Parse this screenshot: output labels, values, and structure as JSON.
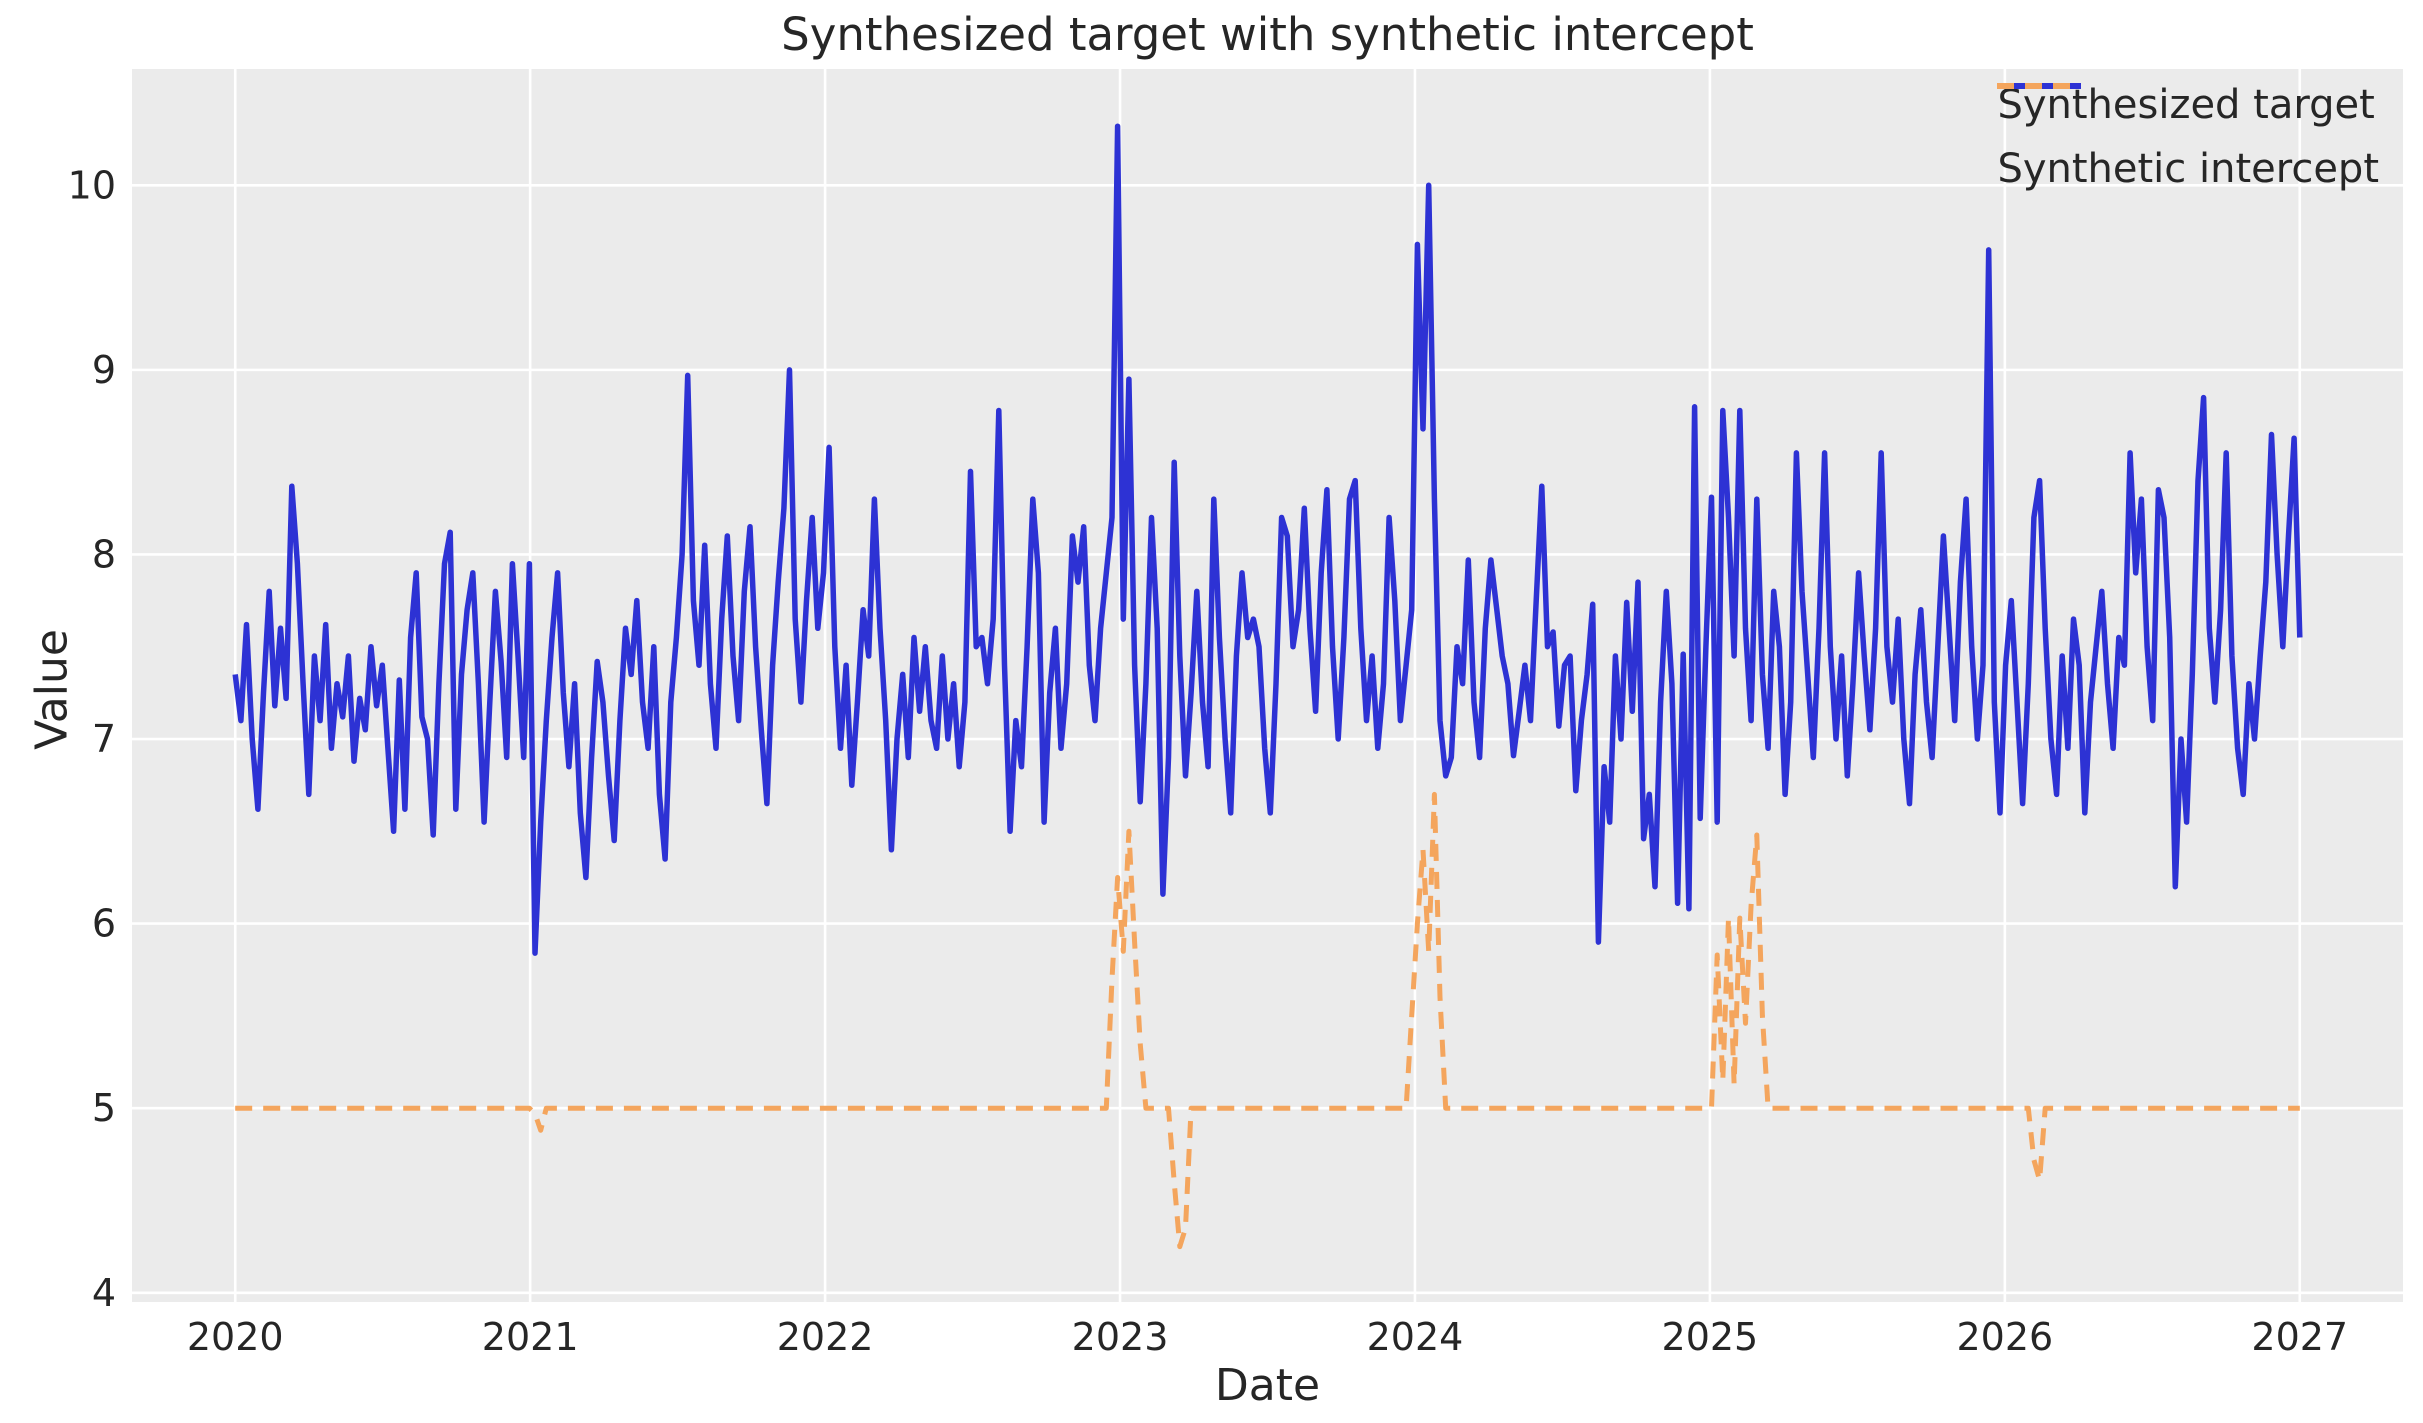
{
  "chart_data": {
    "type": "line",
    "title": "Synthesized target with synthetic intercept",
    "xlabel": "Date",
    "ylabel": "Value",
    "xlim": [
      2019.65,
      2027.35
    ],
    "ylim": [
      3.95,
      10.63
    ],
    "xticks": [
      2020,
      2021,
      2022,
      2023,
      2024,
      2025,
      2026,
      2027
    ],
    "yticks": [
      4,
      5,
      6,
      7,
      8,
      9,
      10
    ],
    "grid": true,
    "legend_position": "upper right",
    "x_start": 2020,
    "x_step_years": 0.0191781,
    "n_points": 366,
    "colors": {
      "figure_background": "#ffffff",
      "axes_background": "#ebebeb",
      "grid": "#ffffff",
      "text": "#262626"
    },
    "series": [
      {
        "name": "Synthesized target",
        "color": "#2d32d4",
        "style": "solid",
        "line_width": 5.5,
        "values": [
          7.35,
          7.1,
          7.62,
          7.0,
          6.62,
          7.25,
          7.8,
          7.18,
          7.6,
          7.22,
          8.37,
          7.95,
          7.3,
          6.7,
          7.45,
          7.1,
          7.62,
          6.95,
          7.3,
          7.12,
          7.45,
          6.88,
          7.22,
          7.05,
          7.5,
          7.18,
          7.4,
          6.95,
          6.5,
          7.32,
          6.62,
          7.55,
          7.9,
          7.12,
          7.0,
          6.48,
          7.3,
          7.95,
          8.12,
          6.62,
          7.35,
          7.7,
          7.9,
          7.3,
          6.55,
          7.2,
          7.8,
          7.42,
          6.9,
          7.95,
          7.45,
          6.9,
          7.95,
          5.84,
          6.55,
          7.1,
          7.55,
          7.9,
          7.25,
          6.85,
          7.3,
          6.6,
          6.25,
          6.9,
          7.42,
          7.2,
          6.8,
          6.45,
          7.1,
          7.6,
          7.35,
          7.75,
          7.2,
          6.95,
          7.5,
          6.7,
          6.35,
          7.2,
          7.55,
          8.0,
          8.97,
          7.75,
          7.4,
          8.05,
          7.3,
          6.95,
          7.65,
          8.1,
          7.45,
          7.1,
          7.8,
          8.15,
          7.5,
          7.05,
          6.65,
          7.4,
          7.85,
          8.25,
          9.0,
          7.65,
          7.2,
          7.75,
          8.2,
          7.6,
          7.9,
          8.58,
          7.5,
          6.95,
          7.4,
          6.75,
          7.2,
          7.7,
          7.45,
          8.3,
          7.6,
          7.1,
          6.4,
          7.0,
          7.35,
          6.9,
          7.55,
          7.15,
          7.5,
          7.1,
          6.95,
          7.45,
          7.0,
          7.3,
          6.85,
          7.2,
          8.45,
          7.5,
          7.55,
          7.3,
          7.65,
          8.78,
          7.4,
          6.5,
          7.1,
          6.85,
          7.5,
          8.3,
          7.9,
          6.55,
          7.25,
          7.6,
          6.95,
          7.3,
          8.1,
          7.85,
          8.15,
          7.4,
          7.1,
          7.6,
          7.9,
          8.2,
          10.32,
          7.65,
          8.95,
          7.4,
          6.66,
          7.3,
          8.2,
          7.6,
          6.16,
          6.9,
          8.5,
          7.45,
          6.8,
          7.25,
          7.8,
          7.2,
          6.85,
          8.3,
          7.55,
          7.0,
          6.6,
          7.45,
          7.9,
          7.55,
          7.65,
          7.5,
          6.95,
          6.6,
          7.3,
          8.2,
          8.1,
          7.5,
          7.7,
          8.25,
          7.6,
          7.15,
          7.9,
          8.35,
          7.5,
          7.0,
          7.55,
          8.3,
          8.4,
          7.6,
          7.1,
          7.45,
          6.95,
          7.3,
          8.2,
          7.75,
          7.1,
          7.4,
          7.7,
          9.68,
          8.68,
          10.0,
          8.3,
          7.1,
          6.8,
          6.9,
          7.5,
          7.3,
          7.97,
          7.2,
          6.9,
          7.6,
          7.97,
          7.71,
          7.45,
          7.3,
          6.91,
          7.15,
          7.4,
          7.1,
          7.75,
          8.37,
          7.5,
          7.58,
          7.07,
          7.4,
          7.45,
          6.72,
          7.1,
          7.35,
          7.73,
          5.9,
          6.85,
          6.55,
          7.45,
          7.0,
          7.74,
          7.15,
          7.85,
          6.46,
          6.7,
          6.2,
          7.2,
          7.8,
          7.3,
          6.11,
          7.46,
          6.08,
          8.8,
          6.57,
          7.5,
          8.31,
          6.55,
          8.78,
          8.2,
          7.45,
          8.78,
          7.6,
          7.1,
          8.3,
          7.35,
          6.95,
          7.8,
          7.5,
          6.7,
          7.2,
          8.55,
          7.8,
          7.35,
          6.9,
          7.6,
          8.55,
          7.5,
          7.0,
          7.45,
          6.8,
          7.3,
          7.9,
          7.45,
          7.05,
          7.6,
          8.55,
          7.5,
          7.2,
          7.65,
          7.0,
          6.65,
          7.35,
          7.7,
          7.2,
          6.9,
          7.5,
          8.1,
          7.6,
          7.1,
          7.85,
          8.3,
          7.5,
          7.0,
          7.4,
          9.65,
          7.2,
          6.6,
          7.4,
          7.75,
          7.2,
          6.65,
          7.3,
          8.2,
          8.4,
          7.6,
          7.0,
          6.7,
          7.45,
          6.95,
          7.65,
          7.4,
          6.6,
          7.2,
          7.5,
          7.8,
          7.3,
          6.95,
          7.55,
          7.4,
          8.55,
          7.9,
          8.3,
          7.5,
          7.1,
          8.35,
          8.2,
          7.55,
          6.2,
          7.0,
          6.55,
          7.35,
          8.4,
          8.85,
          7.6,
          7.2,
          7.7,
          8.55,
          7.45,
          6.95,
          6.7,
          7.3,
          7.0,
          7.45,
          7.85,
          8.65,
          8.0,
          7.5,
          8.1,
          8.63,
          7.55
        ]
      },
      {
        "name": "Synthetic intercept",
        "color": "#f4a55d",
        "style": "dashed",
        "line_width": 5,
        "dash_pattern": [
          17,
          11
        ],
        "base_value": 5.0,
        "anomalies": {
          "53": 4.97,
          "54": 4.88,
          "155": 5.7,
          "156": 6.25,
          "157": 5.85,
          "158": 6.5,
          "159": 5.9,
          "160": 5.35,
          "166": 4.6,
          "167": 4.25,
          "168": 4.35,
          "208": 5.5,
          "209": 6.0,
          "210": 6.4,
          "211": 5.85,
          "212": 6.7,
          "213": 5.6,
          "262": 5.83,
          "263": 5.15,
          "264": 6.03,
          "265": 5.13,
          "266": 6.03,
          "267": 5.46,
          "268": 6.1,
          "269": 6.48,
          "270": 5.5,
          "318": 4.72,
          "319": 4.61
        }
      }
    ]
  }
}
